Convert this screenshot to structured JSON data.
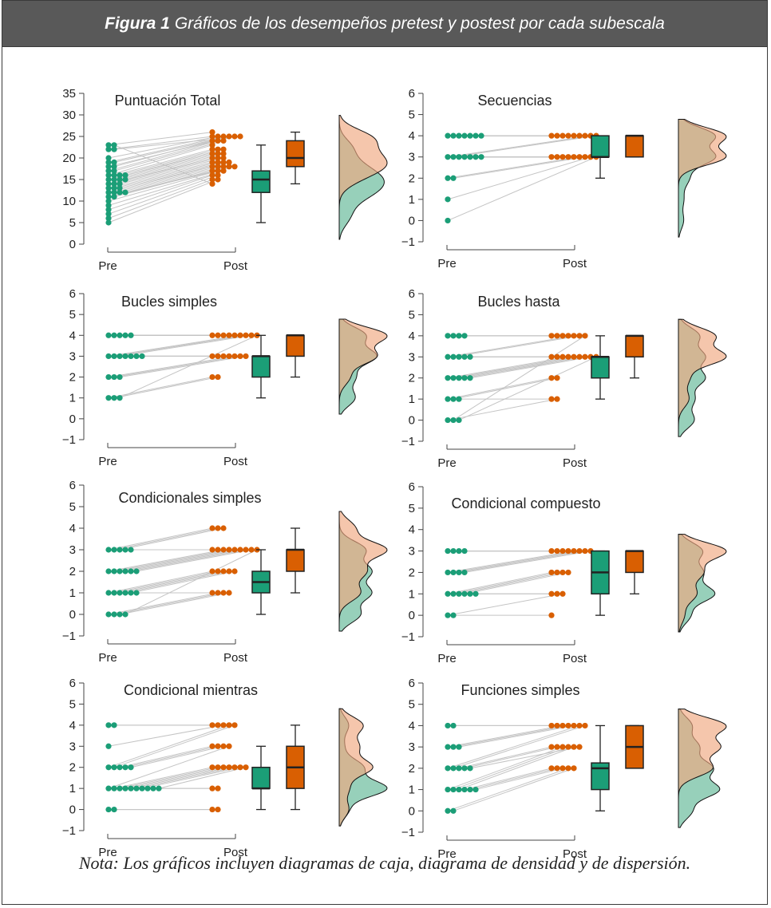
{
  "header": {
    "figure_label": "Figura 1",
    "caption": "Gráficos de los desempeños pretest y postest por cada subescala"
  },
  "note": "Nota: Los gráficos incluyen diagramas de caja, diagrama de densidad y de dispersión.",
  "colors": {
    "pre": "#1b9e77",
    "post": "#d95f02",
    "pre_density": "#8ccbb3",
    "post_density": "#efa880",
    "overlap": "#a08c58",
    "line": "#c4c4c4",
    "axis": "#444444"
  },
  "chart_data": [
    {
      "type": "raincloud",
      "title": "Puntuación Total",
      "x_labels": [
        "Pre",
        "Post"
      ],
      "y_ticks": [
        0,
        5,
        10,
        15,
        20,
        25,
        30,
        35
      ],
      "ylim": [
        0,
        35
      ],
      "pre": [
        23,
        22,
        20,
        19,
        19,
        18,
        18,
        17,
        17,
        16,
        16,
        16,
        16,
        15,
        15,
        15,
        15,
        14,
        14,
        14,
        13,
        13,
        13,
        12,
        12,
        12,
        12,
        11,
        11,
        10,
        9,
        8,
        7,
        6,
        5,
        23,
        22
      ],
      "post": [
        26,
        25,
        25,
        25,
        25,
        25,
        24,
        24,
        24,
        23,
        22,
        22,
        22,
        21,
        21,
        21,
        20,
        20,
        20,
        19,
        19,
        19,
        19,
        18,
        18,
        18,
        18,
        18,
        17,
        17,
        17,
        16,
        16,
        15,
        15,
        14,
        25
      ],
      "box": {
        "pre": [
          5,
          12,
          15,
          17,
          23
        ],
        "post": [
          14,
          18,
          20,
          24,
          26
        ]
      }
    },
    {
      "type": "raincloud",
      "title": "Secuencias",
      "x_labels": [
        "Pre",
        "Post"
      ],
      "y_ticks": [
        -1,
        0,
        1,
        2,
        3,
        4,
        5,
        6
      ],
      "ylim": [
        -1,
        6
      ],
      "pre": [
        4,
        4,
        4,
        4,
        4,
        4,
        4,
        3,
        3,
        3,
        3,
        3,
        3,
        3,
        2,
        2,
        1,
        0
      ],
      "post": [
        4,
        4,
        4,
        4,
        4,
        4,
        4,
        4,
        4,
        3,
        3,
        3,
        3,
        3,
        3,
        3,
        3,
        3
      ],
      "box": {
        "pre": [
          2,
          3,
          3,
          4,
          4
        ],
        "post": [
          3,
          3,
          4,
          4,
          4
        ]
      }
    },
    {
      "type": "raincloud",
      "title": "Bucles simples",
      "x_labels": [
        "Pre",
        "Post"
      ],
      "y_ticks": [
        -1,
        0,
        1,
        2,
        3,
        4,
        5,
        6
      ],
      "ylim": [
        -1,
        6
      ],
      "pre": [
        4,
        4,
        4,
        4,
        4,
        3,
        3,
        3,
        3,
        3,
        3,
        3,
        2,
        2,
        2,
        1,
        1,
        1
      ],
      "post": [
        4,
        4,
        4,
        4,
        4,
        4,
        4,
        4,
        3,
        3,
        3,
        3,
        3,
        3,
        3,
        2,
        2,
        4
      ],
      "box": {
        "pre": [
          1,
          2,
          3,
          3,
          4
        ],
        "post": [
          2,
          3,
          4,
          4,
          4
        ]
      }
    },
    {
      "type": "raincloud",
      "title": "Bucles hasta",
      "x_labels": [
        "Pre",
        "Post"
      ],
      "y_ticks": [
        -1,
        0,
        1,
        2,
        3,
        4,
        5,
        6
      ],
      "ylim": [
        -1,
        6
      ],
      "pre": [
        4,
        4,
        4,
        4,
        3,
        3,
        3,
        3,
        3,
        2,
        2,
        2,
        2,
        2,
        1,
        1,
        1,
        0,
        0,
        0
      ],
      "post": [
        4,
        4,
        4,
        4,
        4,
        4,
        3,
        3,
        3,
        3,
        3,
        3,
        3,
        3,
        2,
        2,
        1,
        1,
        4,
        3
      ],
      "box": {
        "pre": [
          1,
          2,
          3,
          3,
          4
        ],
        "post": [
          2,
          3,
          4,
          4,
          4
        ]
      }
    },
    {
      "type": "raincloud",
      "title": "Condicionales simples",
      "x_labels": [
        "Pre",
        "Post"
      ],
      "y_ticks": [
        -1,
        0,
        1,
        2,
        3,
        4,
        5,
        6
      ],
      "ylim": [
        -1,
        6
      ],
      "pre": [
        3,
        3,
        3,
        3,
        3,
        2,
        2,
        2,
        2,
        2,
        2,
        1,
        1,
        1,
        1,
        1,
        1,
        0,
        0,
        0,
        0
      ],
      "post": [
        4,
        4,
        4,
        3,
        3,
        3,
        3,
        3,
        3,
        3,
        3,
        2,
        2,
        2,
        2,
        2,
        1,
        1,
        1,
        1,
        3
      ],
      "box": {
        "pre": [
          0,
          1,
          1.5,
          2,
          3
        ],
        "post": [
          1,
          2,
          3,
          3,
          4
        ]
      }
    },
    {
      "type": "raincloud",
      "title": "Condicional compuesto",
      "x_labels": [
        "Pre",
        "Post"
      ],
      "y_ticks": [
        -1,
        0,
        1,
        2,
        3,
        4,
        5,
        6
      ],
      "ylim": [
        -1,
        6
      ],
      "pre": [
        3,
        3,
        3,
        3,
        2,
        2,
        2,
        2,
        1,
        1,
        1,
        1,
        1,
        1,
        0,
        0
      ],
      "post": [
        3,
        3,
        3,
        3,
        3,
        3,
        3,
        3,
        2,
        2,
        2,
        2,
        1,
        1,
        1,
        0
      ],
      "box": {
        "pre": [
          0,
          1,
          2,
          3,
          3
        ],
        "post": [
          1,
          2,
          3,
          3,
          3
        ]
      }
    },
    {
      "type": "raincloud",
      "title": "Condicional mientras",
      "x_labels": [
        "Pre",
        "Post"
      ],
      "y_ticks": [
        -1,
        0,
        1,
        2,
        3,
        4,
        5,
        6
      ],
      "ylim": [
        -1,
        6
      ],
      "pre": [
        4,
        4,
        3,
        2,
        2,
        2,
        2,
        2,
        1,
        1,
        1,
        1,
        1,
        1,
        1,
        1,
        1,
        0,
        0,
        1
      ],
      "post": [
        4,
        4,
        4,
        4,
        4,
        3,
        3,
        3,
        3,
        2,
        2,
        2,
        2,
        2,
        2,
        1,
        1,
        0,
        0,
        2
      ],
      "box": {
        "pre": [
          0,
          1,
          1,
          2,
          3
        ],
        "post": [
          0,
          1,
          2,
          3,
          4
        ]
      }
    },
    {
      "type": "raincloud",
      "title": "Funciones simples",
      "x_labels": [
        "Pre",
        "Post"
      ],
      "y_ticks": [
        -1,
        0,
        1,
        2,
        3,
        4,
        5,
        6
      ],
      "ylim": [
        -1,
        6
      ],
      "pre": [
        4,
        4,
        3,
        3,
        3,
        2,
        2,
        2,
        2,
        1,
        1,
        1,
        1,
        1,
        1,
        0,
        0,
        2
      ],
      "post": [
        4,
        4,
        4,
        4,
        4,
        4,
        4,
        3,
        3,
        3,
        3,
        3,
        2,
        2,
        2,
        2,
        2,
        3
      ],
      "box": {
        "pre": [
          0,
          1,
          2,
          2.25,
          4
        ],
        "post": [
          2,
          2,
          3,
          4,
          4
        ]
      }
    }
  ]
}
